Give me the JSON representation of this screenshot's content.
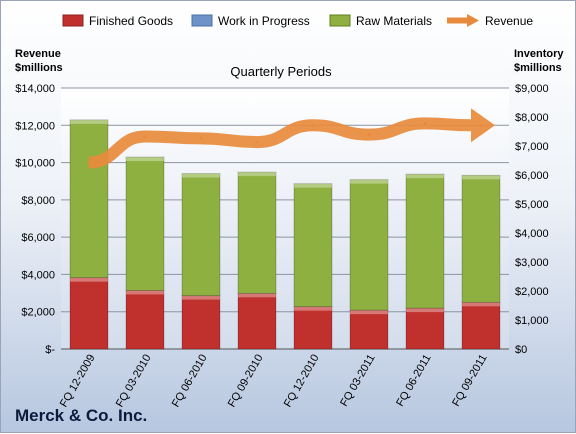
{
  "chart_data": {
    "type": "bar",
    "stacked": true,
    "title": "Quarterly Periods",
    "company": "Merck & Co. Inc.",
    "categories": [
      "FQ 12-2009",
      "FQ 03-2010",
      "FQ 06-2010",
      "FQ 09-2010",
      "FQ 12-2010",
      "FQ 03-2011",
      "FQ 06-2011",
      "FQ 09-2011"
    ],
    "left_axis": {
      "label_line1": "Revenue",
      "label_line2": "$millions",
      "ylim": [
        0,
        14000
      ],
      "ticks": [
        "$-",
        "$2,000",
        "$4,000",
        "$6,000",
        "$8,000",
        "$10,000",
        "$12,000",
        "$14,000"
      ]
    },
    "right_axis": {
      "label_line1": "Inventory",
      "label_line2": "$millions",
      "ylim": [
        0,
        9000
      ],
      "ticks": [
        "$0",
        "$1,000",
        "$2,000",
        "$3,000",
        "$4,000",
        "$5,000",
        "$6,000",
        "$7,000",
        "$8,000",
        "$9,000"
      ]
    },
    "series": [
      {
        "name": "Finished Goods",
        "type": "bar",
        "axis": "right",
        "color": "#c0302c",
        "values": [
          2460,
          2020,
          1840,
          1920,
          1460,
          1340,
          1410,
          1610
        ]
      },
      {
        "name": "Work in Progress",
        "type": "bar",
        "axis": "right",
        "color": "#6f93c8",
        "values": [
          0,
          0,
          0,
          0,
          0,
          0,
          0,
          0
        ]
      },
      {
        "name": "Raw Materials",
        "type": "bar",
        "axis": "right",
        "color": "#8db040",
        "values": [
          5440,
          4600,
          4210,
          4180,
          4240,
          4500,
          4620,
          4380
        ]
      },
      {
        "name": "Revenue",
        "type": "line",
        "axis": "left",
        "color": "#e88a3c",
        "values": [
          10000,
          11400,
          11300,
          11100,
          12000,
          11500,
          12100,
          12000
        ]
      }
    ],
    "grid": true,
    "legend": "top"
  }
}
